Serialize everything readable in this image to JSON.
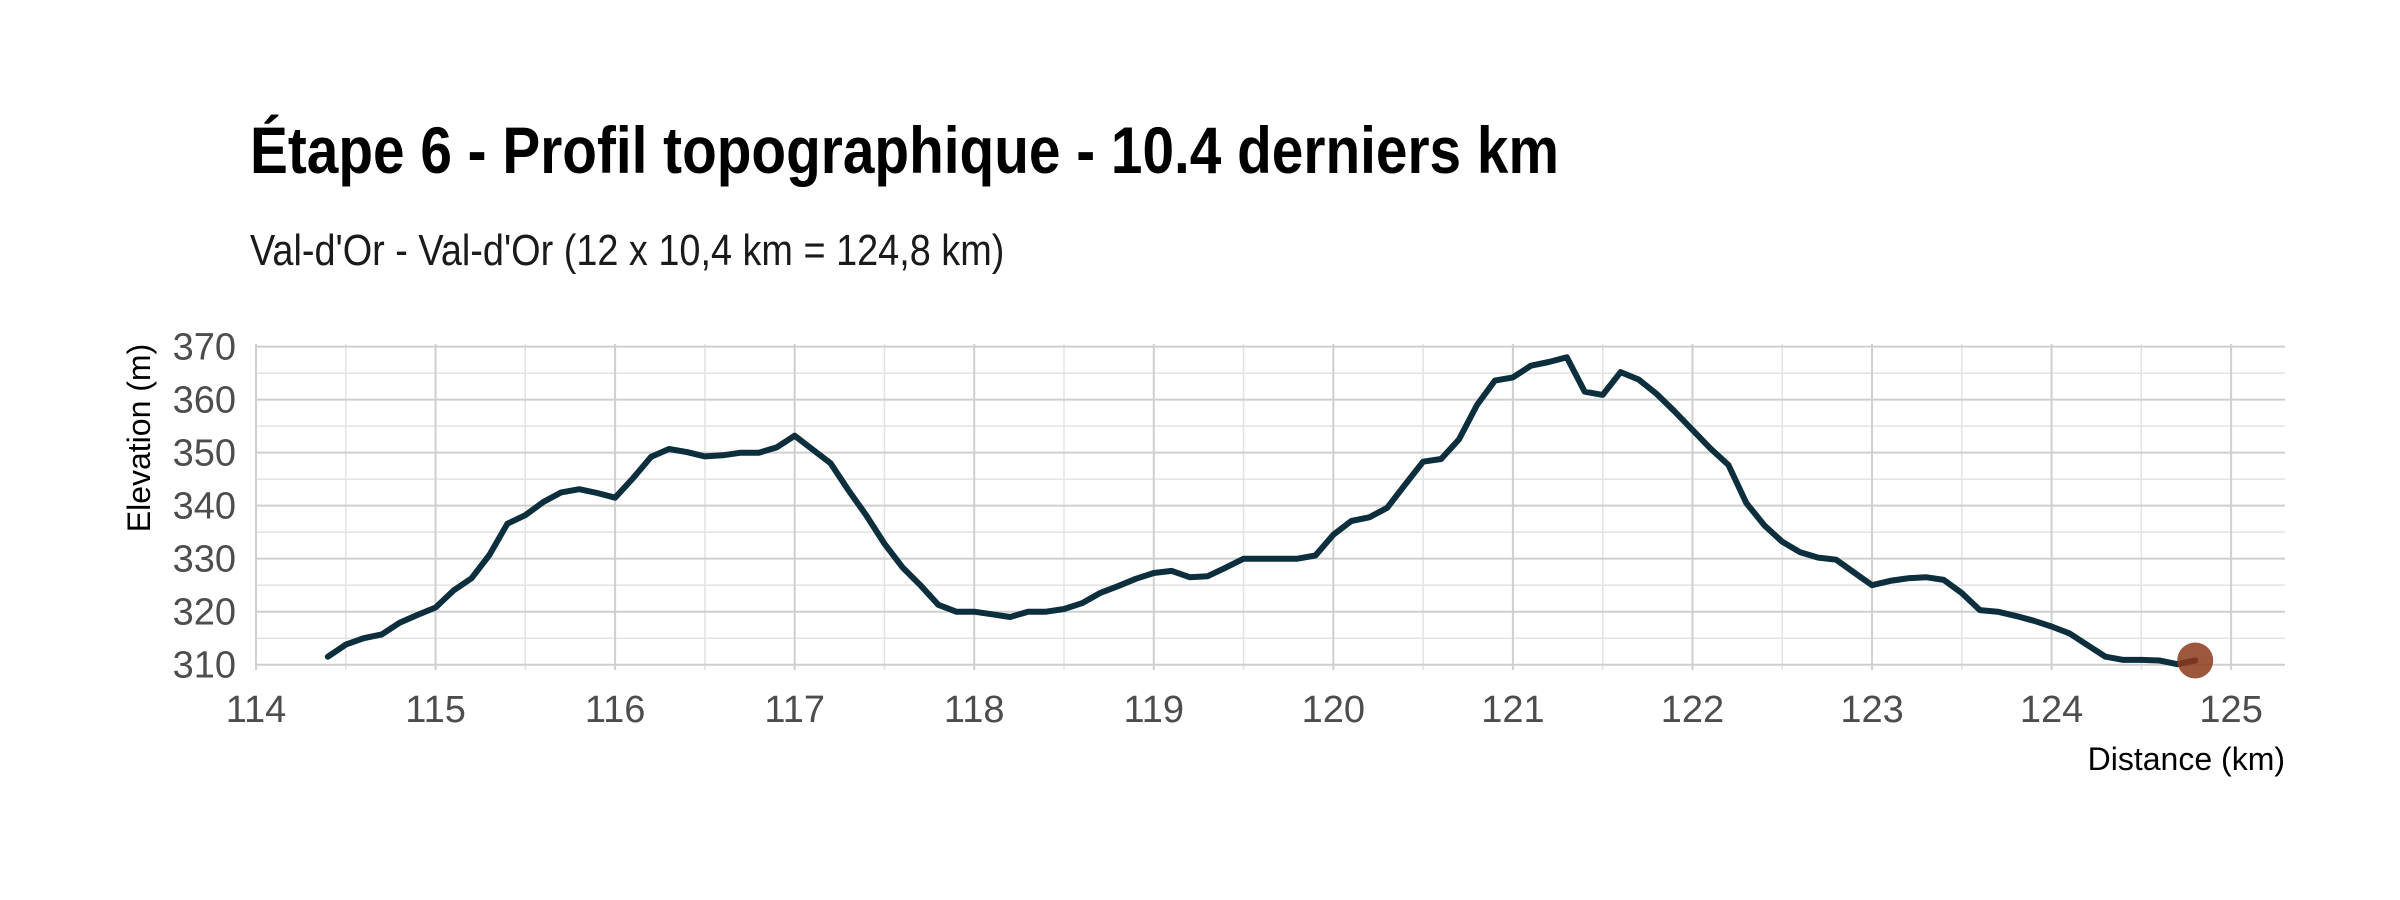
{
  "chart_data": {
    "type": "line",
    "title": "Étape 6 - Profil topographique - 10.4 derniers km",
    "subtitle": "Val-d'Or - Val-d'Or (12 x 10,4 km = 124,8 km)",
    "xlabel": "Distance (km)",
    "ylabel": "Elevation (m)",
    "xlim": [
      114,
      125.3
    ],
    "ylim": [
      309,
      370.5
    ],
    "x_ticks": [
      114,
      115,
      116,
      117,
      118,
      119,
      120,
      121,
      122,
      123,
      124,
      125
    ],
    "y_ticks": [
      310,
      320,
      330,
      340,
      350,
      360,
      370
    ],
    "grid": true,
    "line_color": "#0d2f3d",
    "marker_color": "#8b3a1a",
    "series": [
      {
        "x": [
          114.4,
          114.5,
          114.6,
          114.7,
          114.8,
          114.9,
          115.0,
          115.1,
          115.2,
          115.3,
          115.4,
          115.5,
          115.6,
          115.7,
          115.8,
          115.9,
          116.0,
          116.1,
          116.2,
          116.3,
          116.4,
          116.5,
          116.6,
          116.7,
          116.8,
          116.9,
          117.0,
          117.1,
          117.2,
          117.3,
          117.4,
          117.5,
          117.6,
          117.7,
          117.8,
          117.9,
          118.0,
          118.1,
          118.2,
          118.3,
          118.4,
          118.5,
          118.6,
          118.7,
          118.8,
          118.9,
          119.0,
          119.1,
          119.2,
          119.3,
          119.4,
          119.5,
          119.6,
          119.7,
          119.8,
          119.9,
          120.0,
          120.1,
          120.2,
          120.3,
          120.4,
          120.5,
          120.6,
          120.7,
          120.8,
          120.9,
          121.0,
          121.1,
          121.2,
          121.3,
          121.4,
          121.5,
          121.6,
          121.7,
          121.8,
          121.9,
          122.0,
          122.1,
          122.2,
          122.3,
          122.4,
          122.5,
          122.6,
          122.7,
          122.8,
          122.9,
          123.0,
          123.1,
          123.2,
          123.3,
          123.4,
          123.5,
          123.6,
          123.7,
          123.8,
          123.9,
          124.0,
          124.1,
          124.2,
          124.3,
          124.4,
          124.5,
          124.6,
          124.7,
          124.8
        ],
        "y": [
          311.5,
          313.8,
          315,
          315.7,
          317.9,
          319.4,
          320.8,
          324,
          326.3,
          330.7,
          336.6,
          338.2,
          340.7,
          342.5,
          343.1,
          342.4,
          341.5,
          345.2,
          349.2,
          350.7,
          350.1,
          349.3,
          349.5,
          350,
          350,
          351,
          353.2,
          350.6,
          348,
          342.9,
          338.1,
          332.8,
          328.4,
          325,
          321.3,
          320,
          320,
          319.5,
          319,
          320,
          320,
          320.5,
          321.6,
          323.5,
          324.8,
          326.2,
          327.3,
          327.7,
          326.5,
          326.7,
          328.3,
          330,
          330,
          330,
          330,
          330.6,
          334.5,
          337.1,
          337.8,
          339.6,
          344,
          348.3,
          348.8,
          352.5,
          359,
          363.6,
          364.2,
          366.4,
          367.1,
          368,
          361.5,
          360.9,
          365.2,
          363.8,
          361.1,
          357.8,
          354.3,
          350.8,
          347.7,
          340.5,
          336.3,
          333.2,
          331.2,
          330.2,
          329.8,
          327.4,
          325,
          325.8,
          326.3,
          326.5,
          326,
          323.5,
          320.3,
          320,
          319.2,
          318.3,
          317.2,
          315.9,
          313.7,
          311.5,
          310.9,
          310.9,
          310.8,
          310.1,
          310.8
        ]
      }
    ],
    "end_marker": {
      "x": 124.8,
      "y": 310.8
    }
  }
}
